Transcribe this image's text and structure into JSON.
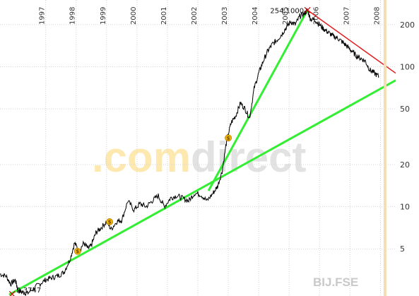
{
  "chart_data": {
    "type": "line",
    "title": "",
    "xlabel": "",
    "ylabel": "",
    "yscale": "log",
    "xlim": [
      1996.0,
      2009.0
    ],
    "ylim": [
      2.3,
      300
    ],
    "grid": true,
    "y_ticks": [
      5,
      10,
      20,
      50,
      100,
      200
    ],
    "x_ticks": [
      "1997",
      "1998",
      "1999",
      "2000",
      "2001",
      "2002",
      "2003",
      "2004",
      "2005",
      "2006",
      "2007",
      "2008"
    ],
    "series": [
      {
        "color": "#000000",
        "x": [
          1996.0,
          1996.2,
          1996.35,
          1996.5,
          1996.6,
          1996.75,
          1996.9,
          1997.1,
          1997.3,
          1997.5,
          1997.7,
          1997.9,
          1998.1,
          1998.3,
          1998.45,
          1998.6,
          1998.75,
          1998.9,
          1999.0,
          1999.15,
          1999.3,
          1999.5,
          1999.65,
          1999.85,
          2000.0,
          2000.2,
          2000.4,
          2000.6,
          2000.8,
          2001.0,
          2001.2,
          2001.4,
          2001.6,
          2001.8,
          2002.0,
          2002.2,
          2002.4,
          2002.6,
          2002.8,
          2003.0,
          2003.15,
          2003.3,
          2003.45,
          2003.6,
          2003.75,
          2003.9,
          2004.05,
          2004.2,
          2004.35,
          2004.5,
          2004.65,
          2004.8,
          2004.95,
          2005.1,
          2005.25,
          2005.4,
          2005.55,
          2005.7,
          2005.85,
          2006.0,
          2006.1,
          2006.2,
          2006.35,
          2006.5,
          2006.65,
          2006.8,
          2006.95,
          2007.1,
          2007.25,
          2007.4,
          2007.55,
          2007.7,
          2007.85,
          2008.0,
          2008.15,
          2008.3,
          2008.45
        ],
        "values": [
          3.3,
          3.2,
          2.8,
          3.0,
          2.5,
          2.45,
          2.4,
          2.6,
          2.8,
          3.0,
          3.1,
          3.2,
          3.4,
          4.2,
          5.5,
          4.8,
          5.5,
          5.0,
          5.3,
          6.5,
          7.0,
          7.8,
          6.9,
          7.9,
          8.0,
          11.0,
          9.5,
          10.5,
          10.0,
          11.0,
          12.0,
          10.0,
          11.5,
          12.0,
          11.5,
          11.0,
          12.5,
          12.2,
          11.0,
          12.5,
          14.0,
          18.0,
          30.0,
          40.0,
          45.0,
          55.0,
          50.0,
          43.0,
          70.0,
          90.0,
          110.0,
          130.0,
          145.0,
          155.0,
          170.0,
          190.0,
          210.0,
          200.0,
          230.0,
          240.0,
          254.1,
          220.0,
          215.0,
          200.0,
          185.0,
          175.0,
          165.0,
          160.0,
          150.0,
          140.0,
          130.0,
          120.0,
          115.0,
          110.0,
          95.0,
          90.0,
          85.0
        ]
      }
    ],
    "trend_lines": [
      {
        "color": "#33ee33",
        "from": [
          1996.3,
          2.35
        ],
        "to": [
          2009.0,
          80.0
        ]
      },
      {
        "color": "#33ee33",
        "from": [
          2002.85,
          13.0
        ],
        "to": [
          2006.1,
          254.1
        ]
      },
      {
        "color": "#e31a1c",
        "from": [
          2006.1,
          254.1
        ],
        "to": [
          2009.0,
          90.0
        ]
      }
    ],
    "annotations": [
      {
        "text": "254,1000",
        "x": 2006.1,
        "y": 254.1
      },
      {
        "text": "2,3747",
        "x": 1996.4,
        "y": 2.3747
      }
    ],
    "dividend_markers": [
      {
        "label": "$",
        "x": 1998.55,
        "y": 4.8
      },
      {
        "label": "$",
        "x": 1999.6,
        "y": 7.8
      },
      {
        "label": "$",
        "x": 2003.5,
        "y": 31.0
      }
    ],
    "vertical_marker": {
      "x": 2008.65,
      "color": "#f5deb3"
    },
    "watermark": {
      "text_a": ".com",
      "text_b": "direct",
      "color_a": "#fde9b0",
      "color_b": "#e2e2e2"
    },
    "symbol": "BIJ.FSE"
  }
}
